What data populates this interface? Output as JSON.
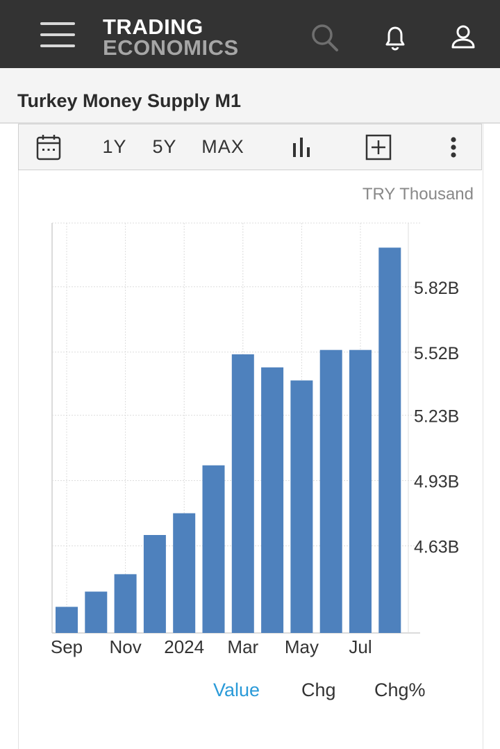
{
  "header": {
    "logo_line1": "TRADING",
    "logo_line2": "ECONOMICS",
    "icons": [
      "menu-icon",
      "search-icon",
      "bell-icon",
      "user-icon"
    ]
  },
  "page": {
    "title": "Turkey Money Supply M1"
  },
  "toolbar": {
    "range_1y": "1Y",
    "range_5y": "5Y",
    "range_max": "MAX",
    "icons": [
      "calendar-icon",
      "bar-chart-icon",
      "add-box-icon",
      "more-vert-icon"
    ]
  },
  "chart_data": {
    "type": "bar",
    "unit": "TRY Thousand",
    "categories": [
      "Sep 2023",
      "Oct 2023",
      "Nov 2023",
      "Dec 2023",
      "Jan 2024",
      "Feb 2024",
      "Mar 2024",
      "Apr 2024",
      "May 2024",
      "Jun 2024",
      "Jul 2024",
      "Aug 2024"
    ],
    "x_tick_labels": [
      {
        "index": 0,
        "label": "Sep"
      },
      {
        "index": 2,
        "label": "Nov"
      },
      {
        "index": 4,
        "label": "2024"
      },
      {
        "index": 6,
        "label": "Mar"
      },
      {
        "index": 8,
        "label": "May"
      },
      {
        "index": 10,
        "label": "Jul"
      }
    ],
    "values": [
      4.35,
      4.42,
      4.5,
      4.68,
      4.78,
      5.0,
      5.51,
      5.45,
      5.39,
      5.53,
      5.53,
      6.0
    ],
    "y_ticks": [
      {
        "value": 4.63,
        "label": "4.63B"
      },
      {
        "value": 4.93,
        "label": "4.93B"
      },
      {
        "value": 5.23,
        "label": "5.23B"
      },
      {
        "value": 5.52,
        "label": "5.52B"
      },
      {
        "value": 5.82,
        "label": "5.82B"
      }
    ],
    "ylim": [
      4.23,
      6.0
    ],
    "bar_color": "#4e81bd",
    "grid": true
  },
  "tabs": [
    {
      "label": "Value",
      "active": true
    },
    {
      "label": "Chg",
      "active": false
    },
    {
      "label": "Chg%",
      "active": false
    }
  ],
  "colors": {
    "header_bg": "#333333",
    "accent": "#2a9ad8",
    "bar": "#4e81bd"
  }
}
